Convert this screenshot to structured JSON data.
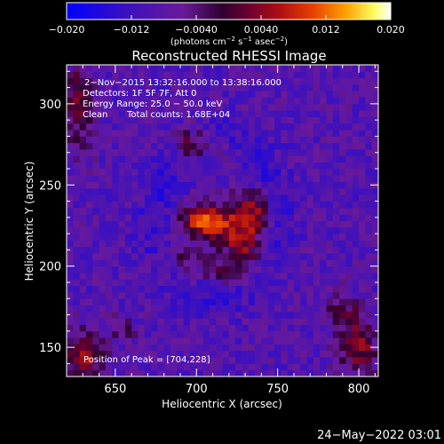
{
  "colorbar": {
    "ticks": [
      "−0.020",
      "−0.012",
      "−0.0040",
      "0.0040",
      "0.012",
      "0.020"
    ],
    "units_main": "(photons cm",
    "units_sup1": "−2",
    "units_mid": " s",
    "units_sup2": "−1",
    "units_tail": " asec",
    "units_sup3": "−2",
    "units_end": ")"
  },
  "title": "Reconstructed RHESSI Image",
  "annotations": {
    "line1": "2−Nov−2015 13:32:16.000 to 13:38:16.000",
    "line2": "Detectors: 1F 5F 7F, Att 0",
    "line3": "Energy Range: 25.0 − 50.0 keV",
    "line4_a": "Clean",
    "line4_b": "Total counts: 1.68E+04",
    "peak": "Position of Peak = [704,228]"
  },
  "timestamp": "24−May−2022 03:01",
  "chart_data": {
    "type": "heatmap",
    "title": "Reconstructed RHESSI Image",
    "xlabel": "Heliocentric X (arcsec)",
    "ylabel": "Heliocentric Y (arcsec)",
    "xlim": [
      620,
      812
    ],
    "ylim": [
      132,
      324
    ],
    "x_ticks": [
      650,
      700,
      750,
      800
    ],
    "y_ticks": [
      150,
      200,
      250,
      300
    ],
    "x_tick_labels": [
      "650",
      "700",
      "750",
      "800"
    ],
    "y_tick_labels": [
      "150",
      "200",
      "250",
      "300"
    ],
    "colorbar_range": [
      -0.02,
      0.02
    ],
    "peak_position": [
      704,
      228
    ],
    "sources": [
      {
        "x": 706,
        "y": 228,
        "sigma_x": 10,
        "sigma_y": 7,
        "amp": 0.02
      },
      {
        "x": 728,
        "y": 216,
        "sigma_x": 9,
        "sigma_y": 14,
        "amp": 0.014
      },
      {
        "x": 735,
        "y": 235,
        "sigma_x": 8,
        "sigma_y": 9,
        "amp": 0.011
      },
      {
        "x": 690,
        "y": 205,
        "sigma_x": 8,
        "sigma_y": 9,
        "amp": 0.008
      },
      {
        "x": 712,
        "y": 196,
        "sigma_x": 10,
        "sigma_y": 6,
        "amp": 0.007
      },
      {
        "x": 697,
        "y": 275,
        "sigma_x": 8,
        "sigma_y": 7,
        "amp": 0.012
      },
      {
        "x": 720,
        "y": 268,
        "sigma_x": 6,
        "sigma_y": 6,
        "amp": 0.006
      },
      {
        "x": 631,
        "y": 143,
        "sigma_x": 8,
        "sigma_y": 12,
        "amp": 0.013
      },
      {
        "x": 628,
        "y": 300,
        "sigma_x": 6,
        "sigma_y": 18,
        "amp": 0.011
      },
      {
        "x": 800,
        "y": 150,
        "sigma_x": 9,
        "sigma_y": 12,
        "amp": 0.012
      },
      {
        "x": 790,
        "y": 172,
        "sigma_x": 8,
        "sigma_y": 8,
        "amp": 0.008
      },
      {
        "x": 655,
        "y": 160,
        "sigma_x": 6,
        "sigma_y": 6,
        "amp": 0.005
      }
    ]
  },
  "colors": {
    "background": "#000000",
    "foreground": "#ffffff",
    "colormap": [
      "#0000ff",
      "#3a10c0",
      "#6a1a9a",
      "#300030",
      "#6a0030",
      "#b01010",
      "#e84000",
      "#ffa000",
      "#ffff60",
      "#ffffff"
    ]
  }
}
